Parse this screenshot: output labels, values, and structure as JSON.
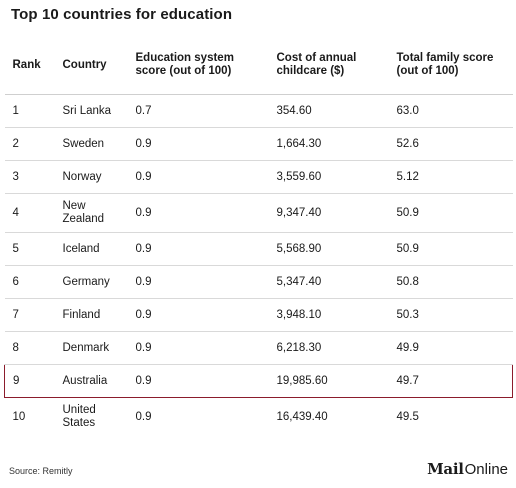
{
  "title": "Top 10 countries for education",
  "table": {
    "headers": {
      "rank": "Rank",
      "country": "Country",
      "education": "Education system score (out of 100)",
      "cost": "Cost of annual childcare ($)",
      "total": "Total family score (out of 100)"
    },
    "rows": [
      {
        "rank": "1",
        "country": "Sri Lanka",
        "education": "0.7",
        "cost": "354.60",
        "total": "63.0"
      },
      {
        "rank": "2",
        "country": "Sweden",
        "education": "0.9",
        "cost": "1,664.30",
        "total": "52.6"
      },
      {
        "rank": "3",
        "country": "Norway",
        "education": "0.9",
        "cost": "3,559.60",
        "total": "5.12"
      },
      {
        "rank": "4",
        "country": "New Zealand",
        "education": "0.9",
        "cost": "9,347.40",
        "total": "50.9"
      },
      {
        "rank": "5",
        "country": "Iceland",
        "education": "0.9",
        "cost": "5,568.90",
        "total": "50.9"
      },
      {
        "rank": "6",
        "country": "Germany",
        "education": "0.9",
        "cost": "5,347.40",
        "total": "50.8"
      },
      {
        "rank": "7",
        "country": "Finland",
        "education": "0.9",
        "cost": "3,948.10",
        "total": "50.3"
      },
      {
        "rank": "8",
        "country": "Denmark",
        "education": "0.9",
        "cost": "6,218.30",
        "total": "49.9"
      },
      {
        "rank": "9",
        "country": "Australia",
        "education": "0.9",
        "cost": "19,985.60",
        "total": "49.7"
      },
      {
        "rank": "10",
        "country": "United States",
        "education": "0.9",
        "cost": "16,439.40",
        "total": "49.5"
      }
    ],
    "highlight_row": 8,
    "highlight_color": "#8b1c2c"
  },
  "footer": {
    "source": "Source: Remitly",
    "logo_bold": "Mail",
    "logo_light": "Online"
  }
}
